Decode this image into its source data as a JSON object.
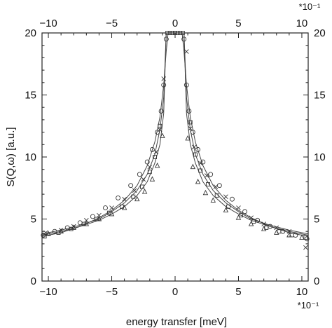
{
  "chart_data": {
    "type": "scatter",
    "title": "",
    "xlabel": "energy transfer [meV]",
    "ylabel": "S(Q,ω) [a.u.]",
    "x_multiplier": "*10⁻¹",
    "xlim": [
      -10.5,
      10.5
    ],
    "ylim": [
      0,
      20
    ],
    "x_ticks": [
      -10,
      -5,
      0,
      5,
      10
    ],
    "y_ticks": [
      0,
      5,
      10,
      15,
      20
    ],
    "x_tick_labels": [
      "−10",
      "−5",
      "0",
      "5",
      "10"
    ],
    "top_tick_labels": [
      "−10",
      "−5",
      "0",
      "5",
      "10"
    ],
    "y_tick_labels": [
      "0",
      "5",
      "10",
      "15",
      "20"
    ],
    "grid": false,
    "legend": "none",
    "series": [
      {
        "marker": "circle",
        "x": [
          -10.4,
          -9.5,
          -8.5,
          -7.5,
          -6.5,
          -5.5,
          -4.5,
          -3.5,
          -2.8,
          -2.2,
          -1.8,
          -1.4,
          -1.1,
          -0.9,
          -0.7,
          0.7,
          0.9,
          1.1,
          1.4,
          1.8,
          2.2,
          2.8,
          3.5,
          4.5,
          5.5,
          6.5,
          7.5,
          8.5,
          9.5,
          10.4
        ],
        "y": [
          3.7,
          4.0,
          4.3,
          4.7,
          5.2,
          5.9,
          6.7,
          7.7,
          8.6,
          9.6,
          10.6,
          12.0,
          13.7,
          15.8,
          19.5,
          19.5,
          15.8,
          13.7,
          12.0,
          10.6,
          9.6,
          8.6,
          7.7,
          6.6,
          5.6,
          4.9,
          4.4,
          4.0,
          3.7,
          3.4
        ]
      },
      {
        "marker": "cross",
        "x": [
          -10.2,
          -9.0,
          -8.0,
          -7.0,
          -6.0,
          -5.0,
          -4.0,
          -3.2,
          -2.5,
          -2.0,
          -1.5,
          -1.2,
          -0.9,
          0.9,
          1.2,
          1.5,
          2.0,
          2.5,
          3.2,
          4.0,
          5.0,
          6.0,
          7.0,
          8.0,
          9.0,
          10.3
        ],
        "y": [
          3.9,
          4.1,
          4.4,
          4.9,
          5.3,
          5.9,
          6.6,
          7.3,
          8.2,
          9.2,
          10.4,
          12.2,
          16.3,
          18.5,
          12.3,
          10.8,
          9.5,
          8.5,
          7.6,
          6.8,
          5.9,
          5.1,
          4.6,
          4.3,
          4.0,
          2.7
        ]
      },
      {
        "marker": "triangle",
        "x": [
          -10.0,
          -9.0,
          -8.0,
          -7.0,
          -6.0,
          -5.0,
          -4.0,
          -3.0,
          -2.4,
          -1.8,
          -1.4,
          -1.0,
          1.0,
          1.4,
          1.8,
          2.4,
          3.0,
          4.0,
          5.0,
          6.0,
          7.0,
          8.0,
          9.0,
          10.0
        ],
        "y": [
          3.8,
          4.0,
          4.3,
          4.6,
          5.0,
          5.4,
          5.9,
          6.6,
          7.2,
          8.2,
          9.3,
          11.7,
          11.5,
          9.2,
          8.0,
          7.1,
          6.5,
          5.7,
          5.1,
          4.6,
          4.2,
          3.9,
          3.7,
          3.5
        ]
      },
      {
        "marker": "square",
        "x": [
          -10.3,
          -9.2,
          -8.2,
          -7.2,
          -6.2,
          -5.2,
          -4.2,
          -3.3,
          -2.6,
          -2.0,
          -1.6,
          -1.2,
          1.2,
          1.6,
          2.0,
          2.6,
          3.3,
          4.2,
          5.2,
          6.2,
          7.2,
          8.2,
          9.2,
          10.3
        ],
        "y": [
          3.6,
          3.9,
          4.2,
          4.6,
          5.0,
          5.5,
          6.0,
          6.8,
          7.6,
          8.8,
          10.0,
          12.5,
          12.8,
          10.2,
          8.9,
          7.8,
          6.9,
          6.0,
          5.3,
          4.8,
          4.3,
          4.0,
          3.7,
          3.5
        ]
      },
      {
        "marker": "square",
        "x": [
          -0.6,
          -0.4,
          -0.2,
          0.0,
          0.2,
          0.4,
          0.6
        ],
        "y": [
          20,
          20,
          20,
          20,
          20,
          20,
          20
        ]
      }
    ],
    "fit_curves": [
      {
        "x": [
          -10.5,
          -9,
          -7.5,
          -6,
          -5,
          -4,
          -3,
          -2.2,
          -1.6,
          -1.2,
          -0.9,
          -0.7,
          -0.55,
          0.55,
          0.7,
          0.9,
          1.2,
          1.6,
          2.2,
          3,
          4,
          5,
          6,
          7.5,
          9,
          10.5
        ],
        "y": [
          3.6,
          3.9,
          4.4,
          5.1,
          5.7,
          6.5,
          7.7,
          9.3,
          11.2,
          13.2,
          15.8,
          18.5,
          20,
          20,
          18.5,
          15.8,
          13.2,
          11.2,
          9.3,
          7.7,
          6.5,
          5.7,
          5.1,
          4.4,
          3.9,
          3.6
        ]
      },
      {
        "x": [
          -10.5,
          -9,
          -7.5,
          -6,
          -5,
          -4,
          -3,
          -2.2,
          -1.6,
          -1.2,
          -0.9,
          -0.7,
          0.7,
          0.9,
          1.2,
          1.6,
          2.2,
          3,
          4,
          5,
          6,
          7.5,
          9,
          10.5
        ],
        "y": [
          3.7,
          4.0,
          4.4,
          4.9,
          5.4,
          6.0,
          6.9,
          8.0,
          9.5,
          11.0,
          13.5,
          20,
          20,
          13.5,
          11.0,
          9.5,
          8.0,
          6.9,
          6.0,
          5.4,
          4.9,
          4.4,
          4.0,
          3.7
        ]
      },
      {
        "x": [
          -10.5,
          -9,
          -7.5,
          -6,
          -5,
          -4,
          -3,
          -2.2,
          -1.6,
          -1.2,
          -0.9,
          -0.7,
          0.7,
          0.9,
          1.2,
          1.6,
          2.2,
          3,
          4,
          5,
          6,
          7.5,
          9,
          10.5
        ],
        "y": [
          3.8,
          4.1,
          4.5,
          5.0,
          5.6,
          6.3,
          7.3,
          8.6,
          10.2,
          12.2,
          14.8,
          20,
          20,
          14.8,
          12.2,
          10.2,
          8.6,
          7.3,
          6.3,
          5.6,
          5.0,
          4.5,
          4.1,
          3.8
        ]
      }
    ]
  }
}
